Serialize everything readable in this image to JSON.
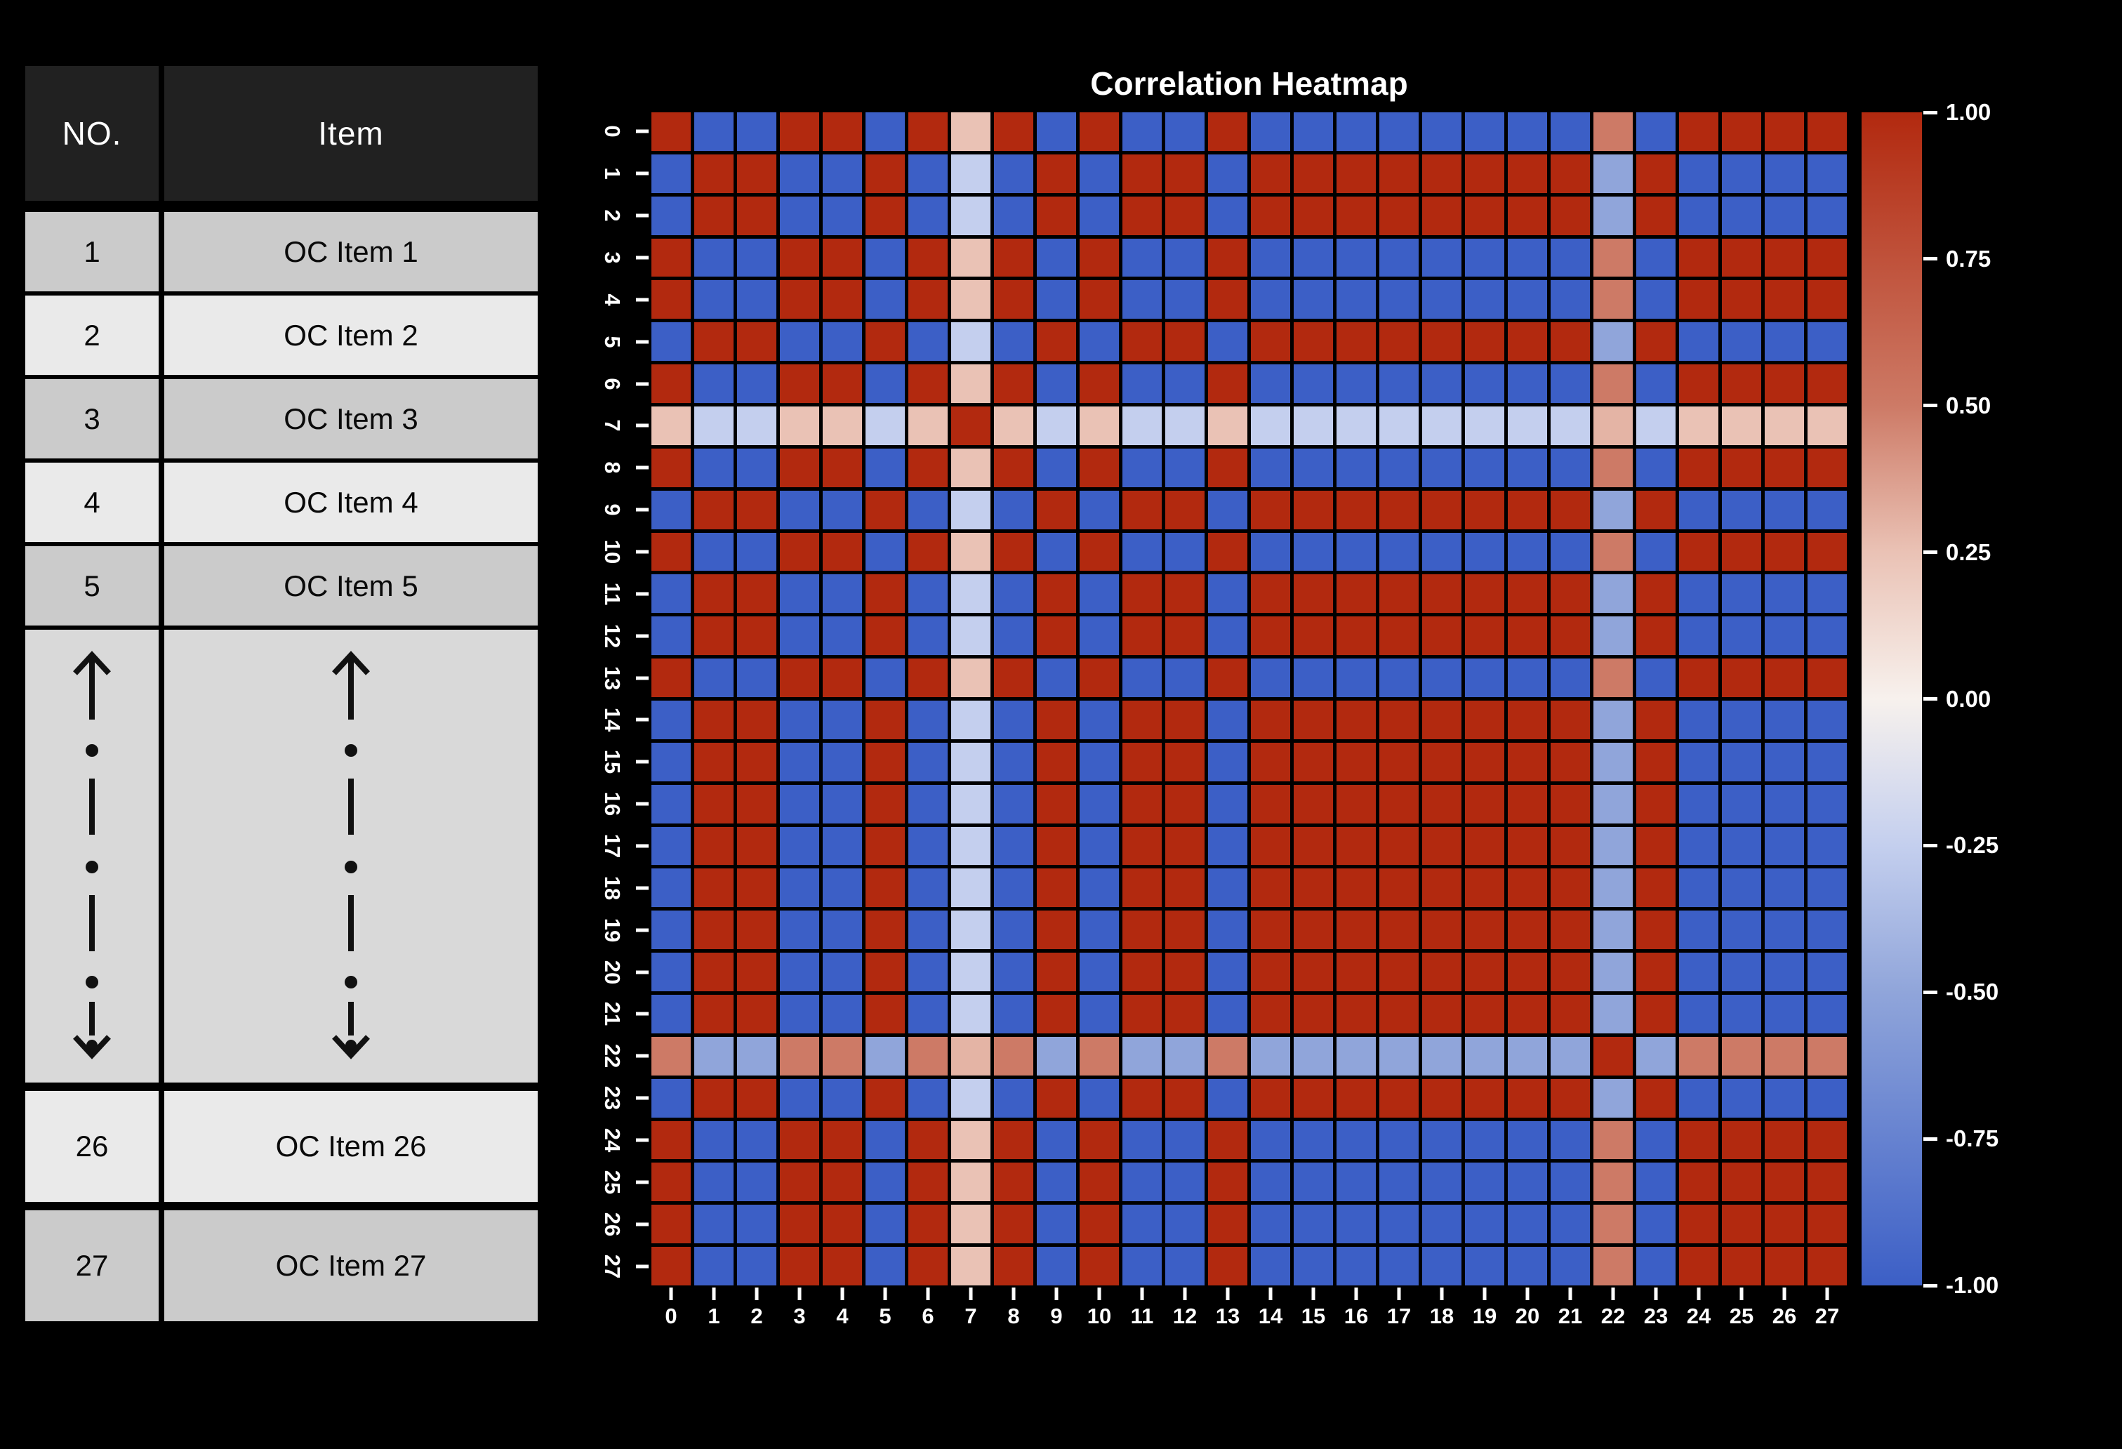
{
  "table": {
    "headers": [
      "NO.",
      "Item"
    ],
    "rows_top": [
      {
        "no": "1",
        "item": "OC Item 1",
        "shade": "dark"
      },
      {
        "no": "2",
        "item": "OC Item 2",
        "shade": "light"
      },
      {
        "no": "3",
        "item": "OC Item 3",
        "shade": "dark"
      },
      {
        "no": "4",
        "item": "OC Item 4",
        "shade": "light"
      },
      {
        "no": "5",
        "item": "OC Item 5",
        "shade": "dark"
      }
    ],
    "ellipsis_marker": "vertical-dotted-arrows",
    "rows_bottom": [
      {
        "no": "26",
        "item": "OC Item 26",
        "shade": "light"
      },
      {
        "no": "27",
        "item": "OC Item 27",
        "shade": "dark"
      }
    ]
  },
  "chart_data": {
    "type": "heatmap",
    "title": "Correlation Heatmap",
    "n": 28,
    "x_ticks": [
      "0",
      "1",
      "2",
      "3",
      "4",
      "5",
      "6",
      "7",
      "8",
      "9",
      "10",
      "11",
      "12",
      "13",
      "14",
      "15",
      "16",
      "17",
      "18",
      "19",
      "20",
      "21",
      "22",
      "23",
      "24",
      "25",
      "26",
      "27"
    ],
    "y_ticks": [
      "0",
      "1",
      "2",
      "3",
      "4",
      "5",
      "6",
      "7",
      "8",
      "9",
      "10",
      "11",
      "12",
      "13",
      "14",
      "15",
      "16",
      "17",
      "18",
      "19",
      "20",
      "21",
      "22",
      "23",
      "24",
      "25",
      "26",
      "27"
    ],
    "value_range": [
      -1,
      1
    ],
    "matrix_rule": "cell(i,j) = 1 if i==j else signs[i]*signs[j], with special_cells overrides [i,j,value]",
    "signs": [
      1,
      -1,
      -1,
      1,
      1,
      -1,
      1,
      0.25,
      1,
      -1,
      1,
      -1,
      -1,
      1,
      -1,
      -1,
      -1,
      -1,
      -1,
      -1,
      -1,
      -1,
      0.5,
      -1,
      1,
      1,
      1,
      1
    ],
    "special_cells": [
      [
        7,
        22,
        0.3
      ],
      [
        22,
        7,
        0.3
      ]
    ],
    "colormap_anchors": [
      {
        "v": -1.0,
        "color": "#3c5fc6"
      },
      {
        "v": -0.5,
        "color": "#90a5da"
      },
      {
        "v": -0.25,
        "color": "#c4cfee"
      },
      {
        "v": 0.0,
        "color": "#f7f1ed"
      },
      {
        "v": 0.25,
        "color": "#eac2b5"
      },
      {
        "v": 0.5,
        "color": "#cd7a66"
      },
      {
        "v": 1.0,
        "color": "#b2290f"
      }
    ],
    "colorbar_ticks": [
      "1.00",
      "0.75",
      "0.50",
      "0.25",
      "0.00",
      "-0.25",
      "-0.50",
      "-0.75",
      "-1.00"
    ],
    "colorbar_position": "right",
    "grid_gap_color": "#000000",
    "tick_color": "#ffffff",
    "label_color": "#ffffff"
  }
}
